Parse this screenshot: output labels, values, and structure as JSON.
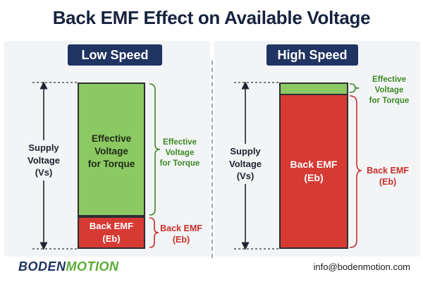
{
  "title": "Back EMF Effect on Available Voltage",
  "low_speed": {
    "badge": "Low Speed",
    "supply_label": [
      "Supply",
      "Voltage",
      "(Vs)"
    ],
    "effective_bar_label": [
      "Effective",
      "Voltage",
      "for Torque"
    ],
    "backemf_bar_label": [
      "Back EMF",
      "(Eb)"
    ],
    "effective_annotation": [
      "Effective",
      "Voltage",
      "for Torque"
    ],
    "backemf_annotation": [
      "Back EMF",
      "(Eb)"
    ],
    "back_emf_fraction": 0.2,
    "effective_fraction": 0.8
  },
  "high_speed": {
    "badge": "High Speed",
    "supply_label": [
      "Supply",
      "Voltage",
      "(Vs)"
    ],
    "backemf_bar_label": [
      "Back EMF",
      "(Eb)"
    ],
    "effective_annotation": [
      "Effective",
      "Voltage",
      "for Torque"
    ],
    "backemf_annotation": [
      "Back EMF",
      "(Eb)"
    ],
    "back_emf_fraction": 0.93,
    "effective_fraction": 0.07
  },
  "colors": {
    "effective": "#8dc963",
    "back_emf": "#d63a33",
    "badge": "#1f3462"
  },
  "footer": {
    "logo_part1": "BODEN",
    "logo_part2": "MOTION",
    "email": "info@bodenmotion.com"
  }
}
